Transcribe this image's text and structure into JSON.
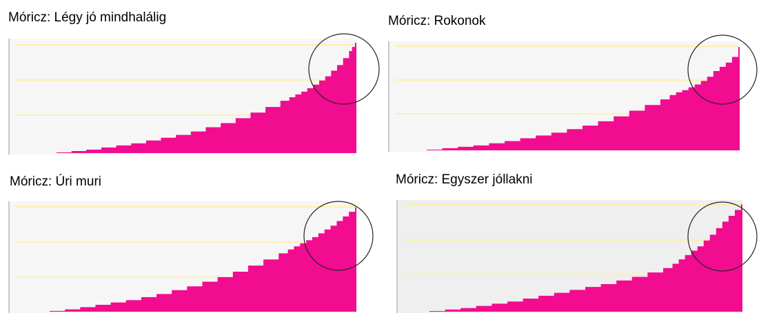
{
  "chart_data": [
    {
      "type": "area",
      "title": "Móricz: Légy jó mindhalálig",
      "xlabel": "",
      "ylabel": "",
      "grid": true,
      "x": [
        0,
        5,
        10,
        15,
        20,
        25,
        30,
        35,
        40,
        45,
        50,
        55,
        60,
        65,
        70,
        75,
        78,
        80,
        82,
        84,
        86,
        88,
        90,
        92,
        94,
        96,
        98,
        99,
        100
      ],
      "y": [
        1,
        3,
        5,
        8,
        11,
        14,
        18,
        22,
        26,
        31,
        37,
        43,
        50,
        58,
        66,
        75,
        80,
        84,
        88,
        93,
        98,
        104,
        110,
        118,
        126,
        136,
        146,
        152,
        158
      ],
      "annotation": "circle"
    },
    {
      "type": "area",
      "title": "Móricz: Rokonok",
      "xlabel": "",
      "ylabel": "",
      "grid": true,
      "x": [
        0,
        5,
        10,
        15,
        20,
        25,
        30,
        35,
        40,
        45,
        50,
        55,
        60,
        65,
        70,
        75,
        78,
        80,
        82,
        84,
        86,
        88,
        90,
        92,
        94,
        96,
        98,
        100
      ],
      "y": [
        1,
        3,
        5,
        7,
        10,
        13,
        17,
        21,
        25,
        30,
        35,
        41,
        48,
        56,
        64,
        72,
        78,
        82,
        85,
        89,
        93,
        98,
        104,
        112,
        118,
        124,
        132,
        146
      ],
      "annotation": "circle"
    },
    {
      "type": "area",
      "title": "Móricz: Úri muri",
      "xlabel": "",
      "ylabel": "",
      "grid": true,
      "x": [
        0,
        5,
        10,
        15,
        20,
        25,
        30,
        35,
        40,
        45,
        50,
        55,
        60,
        65,
        70,
        75,
        78,
        80,
        82,
        84,
        86,
        88,
        90,
        92,
        94,
        96,
        98,
        100
      ],
      "y": [
        1,
        3,
        6,
        9,
        12,
        15,
        19,
        23,
        28,
        33,
        39,
        45,
        52,
        60,
        68,
        76,
        81,
        85,
        89,
        93,
        97,
        102,
        107,
        112,
        118,
        124,
        130,
        136
      ],
      "annotation": "circle"
    },
    {
      "type": "area",
      "title": "Móricz: Egyszer jóllakni",
      "xlabel": "",
      "ylabel": "",
      "grid": true,
      "x": [
        0,
        5,
        10,
        15,
        20,
        25,
        30,
        35,
        40,
        45,
        50,
        55,
        60,
        65,
        70,
        75,
        78,
        80,
        82,
        84,
        86,
        88,
        90,
        92,
        94,
        96,
        98,
        100
      ],
      "y": [
        1,
        3,
        5,
        8,
        11,
        14,
        18,
        22,
        26,
        30,
        34,
        38,
        43,
        48,
        54,
        60,
        66,
        72,
        78,
        84,
        90,
        98,
        106,
        115,
        124,
        132,
        140,
        148
      ],
      "annotation": "circle"
    }
  ],
  "colors": {
    "fill": "#f20c8f",
    "gridline": "#fff07a",
    "plot_bg_light": "#f6f6f6",
    "plot_bg_dark": "#efefef",
    "axis": "#c8c8c8",
    "circle": "#222222"
  }
}
